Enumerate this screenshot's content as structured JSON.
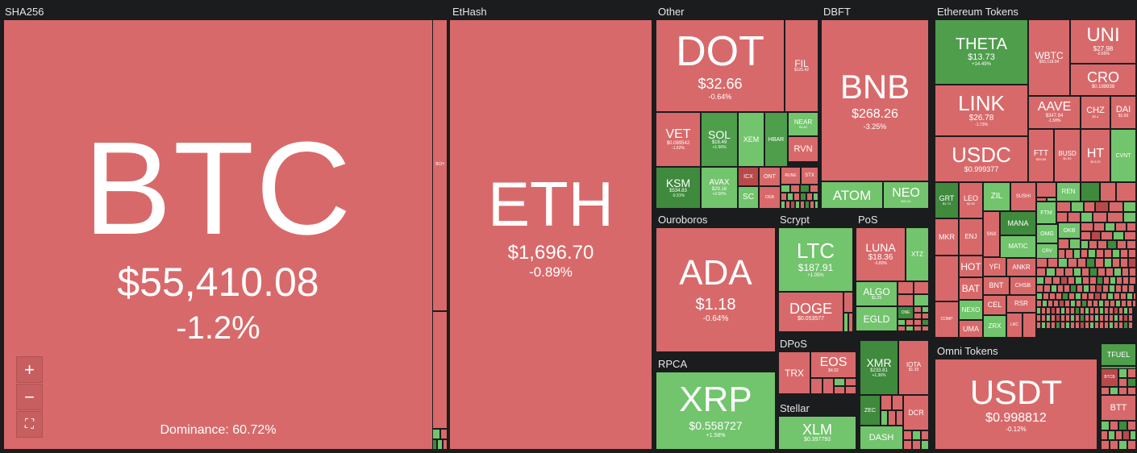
{
  "groups": {
    "sha256": "SHA256",
    "ethash": "EtHash",
    "other": "Other",
    "dbft": "DBFT",
    "ethereum_tokens": "Ethereum Tokens",
    "ouroboros": "Ouroboros",
    "scrypt": "Scrypt",
    "pos": "PoS",
    "dpos": "DPoS",
    "rpca": "RPCA",
    "stellar": "Stellar",
    "omni_tokens": "Omni Tokens"
  },
  "btc": {
    "symbol": "BTC",
    "price": "$55,410.08",
    "change": "-1.2%",
    "dominance": "Dominance: 60.72%",
    "small_label": "BCH"
  },
  "eth": {
    "symbol": "ETH",
    "price": "$1,696.70",
    "change": "-0.89%"
  },
  "dot": {
    "symbol": "DOT",
    "price": "$32.66",
    "change": "-0.64%"
  },
  "fil": {
    "symbol": "FIL",
    "price": "$125.42"
  },
  "vet": {
    "symbol": "VET",
    "price": "$0.089542",
    "change": "-1.62%"
  },
  "sol": {
    "symbol": "SOL",
    "price": "$18.49",
    "change": "+1.56%"
  },
  "xem": {
    "symbol": "XEM"
  },
  "hbar": {
    "symbol": "HBAR"
  },
  "near": {
    "symbol": "NEAR",
    "price": "$3.62"
  },
  "rvn": {
    "symbol": "RVN"
  },
  "ksm": {
    "symbol": "KSM",
    "price": "$534.83",
    "change": "-0.31%"
  },
  "avax": {
    "symbol": "AVAX",
    "price": "$29.16",
    "change": "+2.00%"
  },
  "icx": {
    "symbol": "ICX"
  },
  "ont": {
    "symbol": "ONT"
  },
  "rune": {
    "symbol": "RUNE"
  },
  "stx": {
    "symbol": "STX"
  },
  "sc": {
    "symbol": "SC"
  },
  "dgb": {
    "symbol": "DGB"
  },
  "bnb": {
    "symbol": "BNB",
    "price": "$268.26",
    "change": "-3.25%"
  },
  "atom": {
    "symbol": "ATOM"
  },
  "neo": {
    "symbol": "NEO",
    "price": "$41.24"
  },
  "theta": {
    "symbol": "THETA",
    "price": "$13.73",
    "change": "+14.49%"
  },
  "wbtc": {
    "symbol": "WBTC",
    "price": "$55,118.94"
  },
  "uni": {
    "symbol": "UNI",
    "price": "$27.98",
    "change": "-0.66%"
  },
  "cro": {
    "symbol": "CRO",
    "price": "$0.198938"
  },
  "link": {
    "symbol": "LINK",
    "price": "$26.78",
    "change": "-1.73%"
  },
  "aave": {
    "symbol": "AAVE",
    "price": "$347.94",
    "change": "-1.58%"
  },
  "chz": {
    "symbol": "CHZ",
    "price": "$0.4"
  },
  "dai": {
    "symbol": "DAI",
    "price": "$1.00"
  },
  "usdc": {
    "symbol": "USDC",
    "price": "$0.999377"
  },
  "ftt": {
    "symbol": "FTT",
    "price": "$39.85"
  },
  "busd": {
    "symbol": "BUSD",
    "price": "$1.00"
  },
  "ht": {
    "symbol": "HT",
    "price": "$13.20"
  },
  "cvnt": {
    "symbol": "CVNT"
  },
  "grt": {
    "symbol": "GRT",
    "price": "$1.74"
  },
  "leo": {
    "symbol": "LEO",
    "price": "$2.52"
  },
  "zil": {
    "symbol": "ZIL"
  },
  "sushi": {
    "symbol": "SUSHI"
  },
  "ren": {
    "symbol": "REN"
  },
  "mana": {
    "symbol": "MANA"
  },
  "ftm": {
    "symbol": "FTM"
  },
  "mkr": {
    "symbol": "MKR"
  },
  "enj": {
    "symbol": "ENJ"
  },
  "snx": {
    "symbol": "SNX"
  },
  "omg": {
    "symbol": "OMG"
  },
  "okb": {
    "symbol": "OKB"
  },
  "matic": {
    "symbol": "MATIC"
  },
  "crv": {
    "symbol": "CRV"
  },
  "hot": {
    "symbol": "HOT"
  },
  "yfi": {
    "symbol": "YFI"
  },
  "ankr": {
    "symbol": "ANKR"
  },
  "bat": {
    "symbol": "BAT"
  },
  "bnt": {
    "symbol": "BNT"
  },
  "chsb": {
    "symbol": "CHSB"
  },
  "nexo": {
    "symbol": "NEXO"
  },
  "cel": {
    "symbol": "CEL"
  },
  "rsr": {
    "symbol": "RSR"
  },
  "uma": {
    "symbol": "UMA"
  },
  "zrx": {
    "symbol": "ZRX"
  },
  "lrc": {
    "symbol": "LRC"
  },
  "comp": {
    "symbol": "COMP"
  },
  "ada": {
    "symbol": "ADA",
    "price": "$1.18",
    "change": "-0.64%"
  },
  "ltc": {
    "symbol": "LTC",
    "price": "$187.91",
    "change": "+1.05%"
  },
  "doge": {
    "symbol": "DOGE",
    "price": "$0.053577"
  },
  "luna": {
    "symbol": "LUNA",
    "price": "$18.36",
    "change": "-0.80%"
  },
  "xtz": {
    "symbol": "XTZ"
  },
  "algo": {
    "symbol": "ALGO",
    "price": "$1.25"
  },
  "egld": {
    "symbol": "EGLD"
  },
  "one": {
    "symbol": "ONE"
  },
  "trx": {
    "symbol": "TRX"
  },
  "eos": {
    "symbol": "EOS",
    "price": "$4.32"
  },
  "xmr": {
    "symbol": "XMR",
    "price": "$233.81",
    "change": "+1.36%"
  },
  "iota": {
    "symbol": "IOTA",
    "price": "$1.39"
  },
  "zec": {
    "symbol": "ZEC"
  },
  "dcr": {
    "symbol": "DCR"
  },
  "dash": {
    "symbol": "DASH"
  },
  "xrp": {
    "symbol": "XRP",
    "price": "$0.558727",
    "change": "+1.58%"
  },
  "xlm": {
    "symbol": "XLM",
    "price": "$0.397793"
  },
  "usdt": {
    "symbol": "USDT",
    "price": "$0.998812",
    "change": "-0.12%"
  },
  "tfuel": {
    "symbol": "TFUEL"
  },
  "btcb": {
    "symbol": "BTCB"
  },
  "btt": {
    "symbol": "BTT"
  },
  "controls": {
    "zoom_in": "+",
    "zoom_out": "−",
    "fullscreen": "⛶"
  },
  "colors": {
    "up": "#72c46d",
    "down": "#d8696a",
    "strong_up": "#3f8a3d",
    "background": "#1b1c1e"
  }
}
